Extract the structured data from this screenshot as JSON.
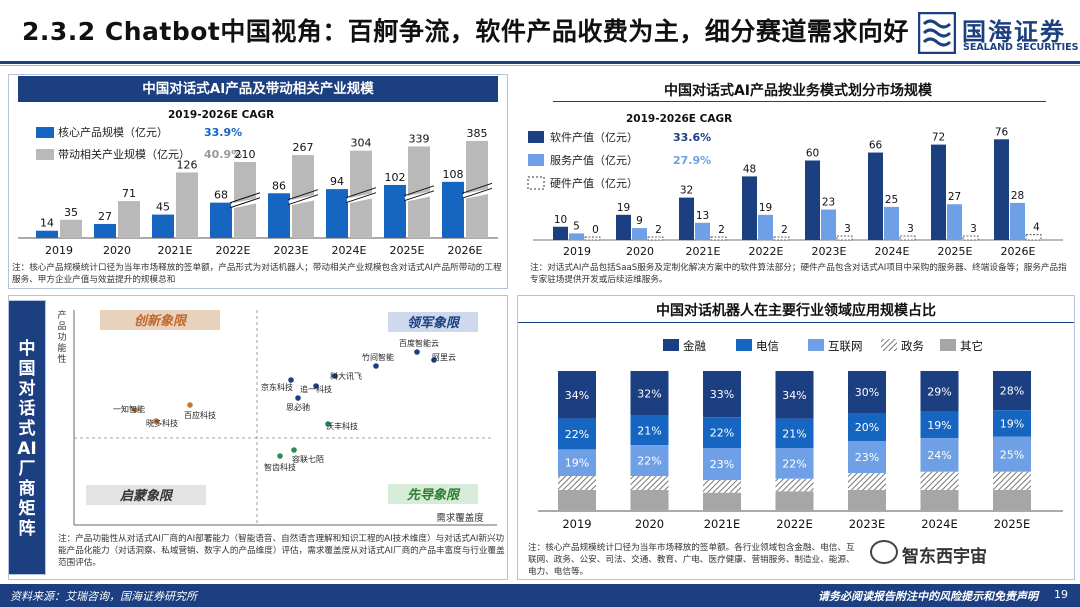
{
  "header": {
    "title": "2.3.2 Chatbot中国视角：百舸争流，软件产品收费为主，细分赛道需求向好",
    "logo_cn": "国海证券",
    "logo_en": "SEALAND SECURITIES"
  },
  "colors": {
    "navy": "#1b3f80",
    "blue": "#1665c1",
    "light_blue": "#6fa0e6",
    "gray": "#b9b9b9",
    "dark_gray": "#7d7d7d",
    "orange": "#c57b2b",
    "green": "#2e8b57"
  },
  "panel1": {
    "title": "中国对话式AI产品及带动相关产业规模",
    "note": "注：核心产品规模统计口径为当年市场释放的签单额，产品形式为对话机器人；带动相关产业规模包含对话式AI产品所带动的工程服务、甲方企业产值与效益提升的规模总和"
  },
  "panel2": {
    "title": "中国对话式AI产品按业务模式划分市场规模",
    "note": "注：对话式AI产品包括SaaS服务及定制化解决方案中的软件算法部分；硬件产品包含对话式AI项目中采购的服务器、终端设备等；服务产品指专家驻场提供开发或后续运维服务。"
  },
  "panel3": {
    "title": "中国对话机器人在主要行业领域应用规模占比",
    "note": "注：核心产品规模统计口径为当年市场释放的签单额。各行业领域包含金融、电信、互联网、政务、公安、司法、交通、教育、广电、医疗健康、营销服务、制造业、能源、电力、电信等。"
  },
  "panel4": {
    "side_label": [
      "中",
      "国",
      "对",
      "话",
      "式",
      "AI",
      "厂",
      "商",
      "矩",
      "阵"
    ],
    "y_axis_label": [
      "产",
      "品",
      "功",
      "能",
      "性"
    ],
    "x_axis_label": "需求覆盖度",
    "quadrants": [
      "创新象限",
      "领军象限",
      "启蒙象限",
      "先导象限"
    ],
    "companies": [
      {
        "name": "百度智能云",
        "color": "#1b3f80"
      },
      {
        "name": "阿里云",
        "color": "#1b3f80"
      },
      {
        "name": "竹间智能",
        "color": "#1b3f80"
      },
      {
        "name": "科大讯飞",
        "color": "#1b3f80"
      },
      {
        "name": "京东科技",
        "color": "#1b3f80"
      },
      {
        "name": "追一科技",
        "color": "#1b3f80"
      },
      {
        "name": "思必驰",
        "color": "#1b3f80"
      },
      {
        "name": "一知智能",
        "color": "#c57b2b"
      },
      {
        "name": "百应科技",
        "color": "#c57b2b"
      },
      {
        "name": "晓多科技",
        "color": "#c57b2b"
      },
      {
        "name": "沃丰科技",
        "color": "#2e8b57"
      },
      {
        "name": "容联七陌",
        "color": "#2e8b57"
      },
      {
        "name": "智齿科技",
        "color": "#2e8b57"
      }
    ],
    "note": "注：产品功能性从对话式AI厂商的AI部署能力（智能语音、自然语言理解和知识工程的AI技术维度）与对话式AI新兴功能产品化能力（对话洞察、私域营销、数字人的产品维度）评估，需求覆盖度从对话式AI厂商的产品丰富度与行业覆盖范围评估。"
  },
  "footer": {
    "source": "资料来源：艾瑞咨询，国海证券研究所",
    "disclaimer": "请务必阅读报告附注中的风险提示和免责声明",
    "page": "19",
    "watermark": "智东西宇宙"
  },
  "chart_data": [
    {
      "type": "bar",
      "title": "中国对话式AI产品及带动相关产业规模",
      "cagr_header": "2019-2026E CAGR",
      "categories": [
        "2019",
        "2020",
        "2021E",
        "2022E",
        "2023E",
        "2024E",
        "2025E",
        "2026E"
      ],
      "series": [
        {
          "name": "核心产品规模（亿元）",
          "cagr": "33.9%",
          "color": "#1665c1",
          "values": [
            14,
            27,
            45,
            68,
            86,
            94,
            102,
            108
          ]
        },
        {
          "name": "带动相关产业规模（亿元）",
          "cagr": "40.9%",
          "color": "#b9b9b9",
          "values": [
            35,
            71,
            126,
            210,
            267,
            304,
            339,
            385
          ]
        }
      ]
    },
    {
      "type": "bar",
      "title": "中国对话式AI产品按业务模式划分市场规模",
      "cagr_header": "2019-2026E CAGR",
      "categories": [
        "2019",
        "2020",
        "2021E",
        "2022E",
        "2023E",
        "2024E",
        "2025E",
        "2026E"
      ],
      "series": [
        {
          "name": "软件产值（亿元）",
          "cagr": "33.6%",
          "color": "#1b3f80",
          "values": [
            10,
            19,
            32,
            48,
            60,
            66,
            72,
            76
          ]
        },
        {
          "name": "服务产值（亿元）",
          "cagr": "27.9%",
          "color": "#6fa0e6",
          "values": [
            5,
            9,
            13,
            19,
            23,
            25,
            27,
            28
          ]
        },
        {
          "name": "硬件产值（亿元）",
          "cagr": "",
          "color": "#ffffff",
          "values": [
            0,
            2,
            2,
            2,
            3,
            3,
            3,
            4
          ]
        }
      ]
    },
    {
      "type": "bar",
      "stacked": true,
      "percent": true,
      "title": "中国对话机器人在主要行业领域应用规模占比",
      "categories": [
        "2019",
        "2020",
        "2021E",
        "2022E",
        "2023E",
        "2024E",
        "2025E"
      ],
      "series": [
        {
          "name": "金融",
          "color": "#1b3f80",
          "values": [
            34,
            32,
            33,
            34,
            30,
            29,
            28
          ],
          "labels": [
            "34%",
            "32%",
            "33%",
            "34%",
            "30%",
            "29%",
            "28%"
          ]
        },
        {
          "name": "电信",
          "color": "#1665c1",
          "values": [
            22,
            21,
            22,
            21,
            20,
            19,
            19
          ],
          "labels": [
            "22%",
            "21%",
            "22%",
            "21%",
            "20%",
            "19%",
            "19%"
          ]
        },
        {
          "name": "互联网",
          "color": "#6fa0e6",
          "values": [
            19,
            22,
            23,
            22,
            23,
            24,
            25
          ],
          "labels": [
            "19%",
            "22%",
            "23%",
            "22%",
            "23%",
            "24%",
            "25%"
          ]
        },
        {
          "name": "政务",
          "color": "#999999",
          "values": [
            10,
            10,
            9,
            9,
            12,
            13,
            13
          ],
          "labels": []
        },
        {
          "name": "其它",
          "color": "#a6a6a6",
          "values": [
            15,
            15,
            13,
            14,
            15,
            15,
            15
          ],
          "labels": []
        }
      ]
    }
  ]
}
